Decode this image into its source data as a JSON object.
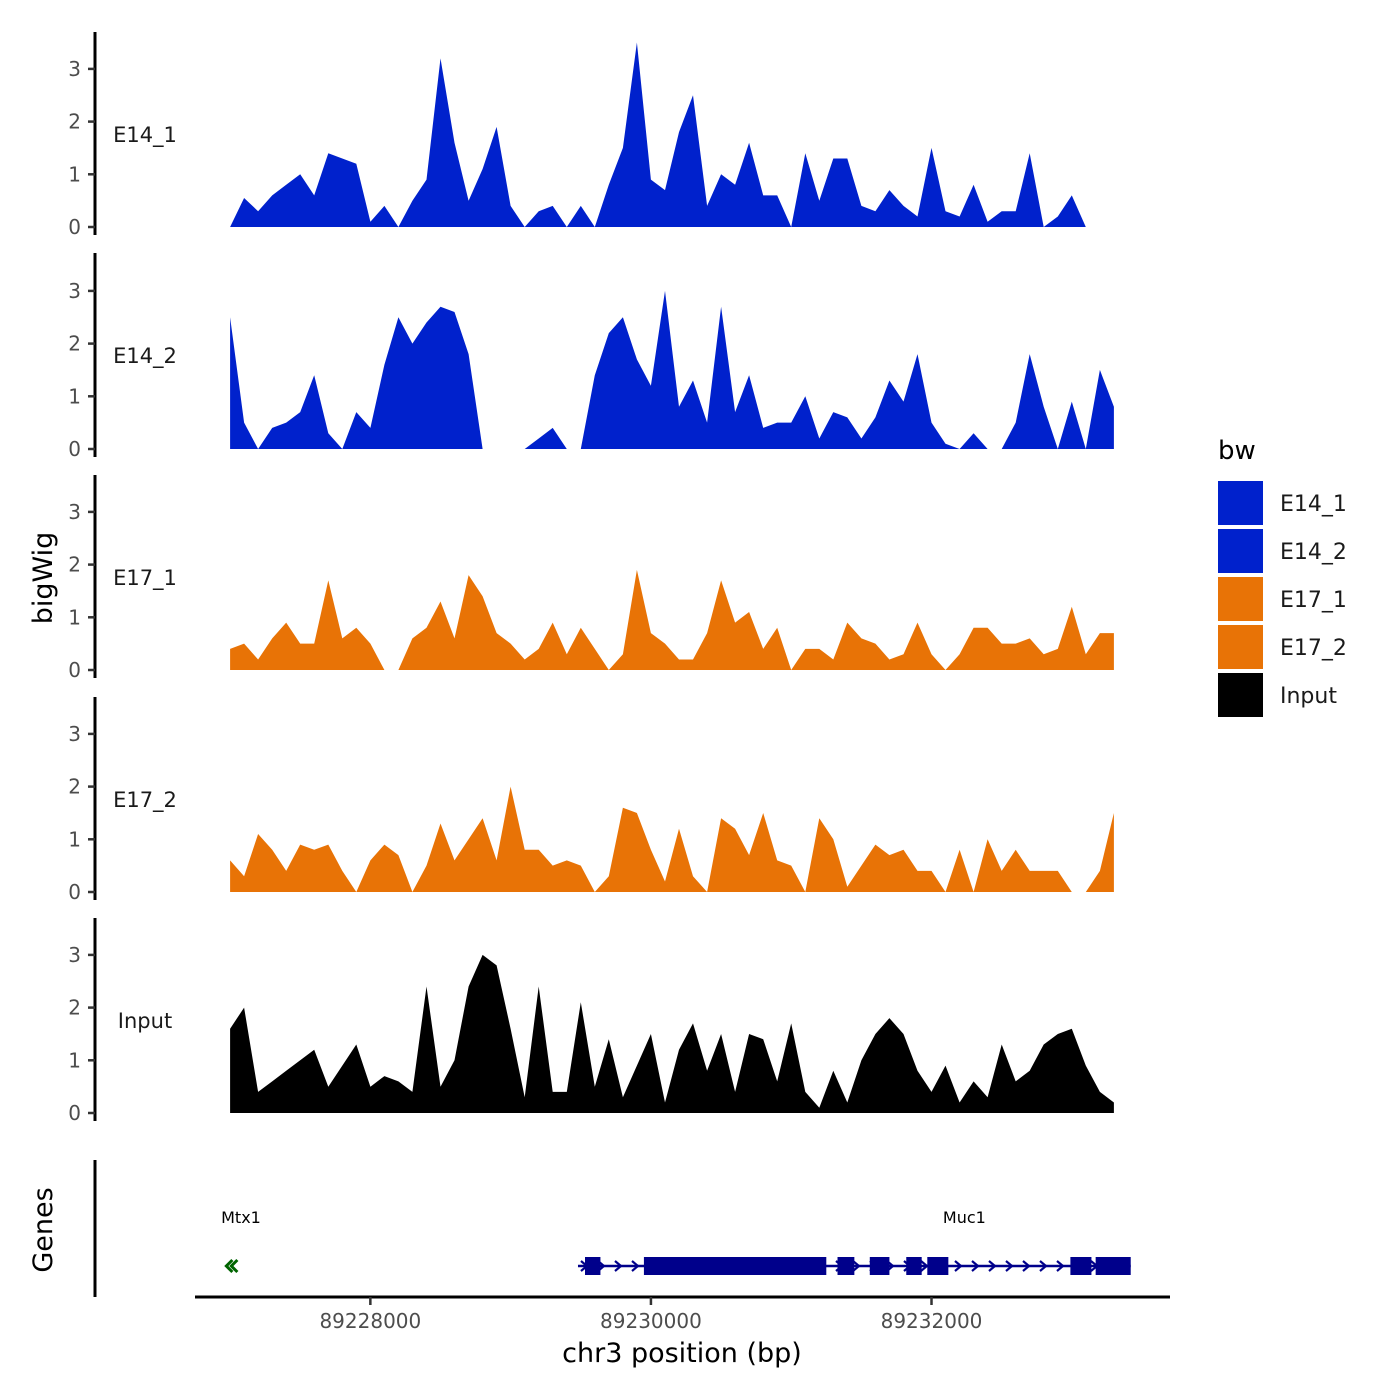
{
  "chart_data": {
    "type": "area",
    "ylabel": "bigWig",
    "xlabel": "chr3 position (bp)",
    "ylim": [
      0,
      3.7
    ],
    "yticks": [
      0,
      1,
      2,
      3
    ],
    "xlim": [
      89226750,
      89233700
    ],
    "xticks": [
      89228000,
      89230000,
      89232000
    ],
    "xtick_labels": [
      "89228000",
      "89230000",
      "89232000"
    ],
    "legend": {
      "title": "bw",
      "position": "right",
      "entries": [
        {
          "label": "E14_1",
          "color": "#0021CC"
        },
        {
          "label": "E14_2",
          "color": "#0021CC"
        },
        {
          "label": "E17_1",
          "color": "#E87306"
        },
        {
          "label": "E17_2",
          "color": "#E87306"
        },
        {
          "label": "Input",
          "color": "#000000"
        }
      ]
    },
    "tracks": [
      {
        "name": "E14_1",
        "color": "#0021CC",
        "x": [
          89227000,
          89227100,
          89227200,
          89227300,
          89227400,
          89227500,
          89227600,
          89227700,
          89227800,
          89227900,
          89228000,
          89228100,
          89228200,
          89228300,
          89228400,
          89228500,
          89228600,
          89228700,
          89228800,
          89228900,
          89229000,
          89229100,
          89229200,
          89229300,
          89229400,
          89229500,
          89229600,
          89229700,
          89229800,
          89229900,
          89230000,
          89230100,
          89230200,
          89230300,
          89230400,
          89230500,
          89230600,
          89230700,
          89230800,
          89230900,
          89231000,
          89231100,
          89231200,
          89231300,
          89231400,
          89231500,
          89231600,
          89231700,
          89231800,
          89231900,
          89232000,
          89232100,
          89232200,
          89232300,
          89232400,
          89232500,
          89232600,
          89232700,
          89232800,
          89232900,
          89233000,
          89233100,
          89233200,
          89233300
        ],
        "values": [
          0.0,
          0.55,
          0.3,
          0.6,
          0.8,
          1.0,
          0.6,
          1.4,
          1.3,
          1.2,
          0.1,
          0.4,
          0.0,
          0.5,
          0.9,
          3.2,
          1.6,
          0.5,
          1.1,
          1.9,
          0.4,
          0.0,
          0.3,
          0.4,
          0.0,
          0.4,
          0.0,
          0.8,
          1.5,
          3.5,
          0.9,
          0.7,
          1.8,
          2.5,
          0.4,
          1.0,
          0.8,
          1.6,
          0.6,
          0.6,
          0.0,
          1.4,
          0.5,
          1.3,
          1.3,
          0.4,
          0.3,
          0.7,
          0.4,
          0.2,
          1.5,
          0.3,
          0.2,
          0.8,
          0.1,
          0.3,
          0.3,
          1.4,
          0.0,
          0.2,
          0.6,
          0.0,
          0.0,
          0.0
        ]
      },
      {
        "name": "E14_2",
        "color": "#0021CC",
        "x": [
          89227000,
          89227100,
          89227200,
          89227300,
          89227400,
          89227500,
          89227600,
          89227700,
          89227800,
          89227900,
          89228000,
          89228100,
          89228200,
          89228300,
          89228400,
          89228500,
          89228600,
          89228700,
          89228800,
          89228900,
          89229000,
          89229100,
          89229200,
          89229300,
          89229400,
          89229500,
          89229600,
          89229700,
          89229800,
          89229900,
          89230000,
          89230100,
          89230200,
          89230300,
          89230400,
          89230500,
          89230600,
          89230700,
          89230800,
          89230900,
          89231000,
          89231100,
          89231200,
          89231300,
          89231400,
          89231500,
          89231600,
          89231700,
          89231800,
          89231900,
          89232000,
          89232100,
          89232200,
          89232300,
          89232400,
          89232500,
          89232600,
          89232700,
          89232800,
          89232900,
          89233000,
          89233100,
          89233200,
          89233300
        ],
        "values": [
          2.5,
          0.5,
          0.0,
          0.4,
          0.5,
          0.7,
          1.4,
          0.3,
          0.0,
          0.7,
          0.4,
          1.6,
          2.5,
          2.0,
          2.4,
          2.7,
          2.6,
          1.8,
          0.0,
          0.0,
          0.0,
          0.0,
          0.2,
          0.4,
          0.0,
          0.0,
          1.4,
          2.2,
          2.5,
          1.7,
          1.2,
          3.0,
          0.8,
          1.3,
          0.5,
          2.7,
          0.7,
          1.4,
          0.4,
          0.5,
          0.5,
          1.0,
          0.2,
          0.7,
          0.6,
          0.2,
          0.6,
          1.3,
          0.9,
          1.8,
          0.5,
          0.1,
          0.0,
          0.3,
          0.0,
          0.0,
          0.5,
          1.8,
          0.8,
          0.0,
          0.9,
          0.0,
          1.5,
          0.8
        ]
      },
      {
        "name": "E17_1",
        "color": "#E87306",
        "x": [
          89227000,
          89227100,
          89227200,
          89227300,
          89227400,
          89227500,
          89227600,
          89227700,
          89227800,
          89227900,
          89228000,
          89228100,
          89228200,
          89228300,
          89228400,
          89228500,
          89228600,
          89228700,
          89228800,
          89228900,
          89229000,
          89229100,
          89229200,
          89229300,
          89229400,
          89229500,
          89229600,
          89229700,
          89229800,
          89229900,
          89230000,
          89230100,
          89230200,
          89230300,
          89230400,
          89230500,
          89230600,
          89230700,
          89230800,
          89230900,
          89231000,
          89231100,
          89231200,
          89231300,
          89231400,
          89231500,
          89231600,
          89231700,
          89231800,
          89231900,
          89232000,
          89232100,
          89232200,
          89232300,
          89232400,
          89232500,
          89232600,
          89232700,
          89232800,
          89232900,
          89233000,
          89233100,
          89233200,
          89233300
        ],
        "values": [
          0.4,
          0.5,
          0.2,
          0.6,
          0.9,
          0.5,
          0.5,
          1.7,
          0.6,
          0.8,
          0.5,
          0.0,
          0.0,
          0.6,
          0.8,
          1.3,
          0.6,
          1.8,
          1.4,
          0.7,
          0.5,
          0.2,
          0.4,
          0.9,
          0.3,
          0.8,
          0.4,
          0.0,
          0.3,
          1.9,
          0.7,
          0.5,
          0.2,
          0.2,
          0.7,
          1.7,
          0.9,
          1.1,
          0.4,
          0.8,
          0.0,
          0.4,
          0.4,
          0.2,
          0.9,
          0.6,
          0.5,
          0.2,
          0.3,
          0.9,
          0.3,
          0.0,
          0.3,
          0.8,
          0.8,
          0.5,
          0.5,
          0.6,
          0.3,
          0.4,
          1.2,
          0.3,
          0.7,
          0.7
        ]
      },
      {
        "name": "E17_2",
        "color": "#E87306",
        "x": [
          89227000,
          89227100,
          89227200,
          89227300,
          89227400,
          89227500,
          89227600,
          89227700,
          89227800,
          89227900,
          89228000,
          89228100,
          89228200,
          89228300,
          89228400,
          89228500,
          89228600,
          89228700,
          89228800,
          89228900,
          89229000,
          89229100,
          89229200,
          89229300,
          89229400,
          89229500,
          89229600,
          89229700,
          89229800,
          89229900,
          89230000,
          89230100,
          89230200,
          89230300,
          89230400,
          89230500,
          89230600,
          89230700,
          89230800,
          89230900,
          89231000,
          89231100,
          89231200,
          89231300,
          89231400,
          89231500,
          89231600,
          89231700,
          89231800,
          89231900,
          89232000,
          89232100,
          89232200,
          89232300,
          89232400,
          89232500,
          89232600,
          89232700,
          89232800,
          89232900,
          89233000,
          89233100,
          89233200,
          89233300
        ],
        "values": [
          0.6,
          0.3,
          1.1,
          0.8,
          0.4,
          0.9,
          0.8,
          0.9,
          0.4,
          0.0,
          0.6,
          0.9,
          0.7,
          0.0,
          0.5,
          1.3,
          0.6,
          1.0,
          1.4,
          0.6,
          2.0,
          0.8,
          0.8,
          0.5,
          0.6,
          0.5,
          0.0,
          0.3,
          1.6,
          1.5,
          0.8,
          0.2,
          1.2,
          0.3,
          0.0,
          1.4,
          1.2,
          0.7,
          1.5,
          0.6,
          0.5,
          0.0,
          1.4,
          1.0,
          0.1,
          0.5,
          0.9,
          0.7,
          0.8,
          0.4,
          0.4,
          0.0,
          0.8,
          0.0,
          1.0,
          0.4,
          0.8,
          0.4,
          0.4,
          0.4,
          0.0,
          0.0,
          0.4,
          1.5
        ]
      },
      {
        "name": "Input",
        "color": "#000000",
        "x": [
          89227000,
          89227100,
          89227200,
          89227300,
          89227400,
          89227500,
          89227600,
          89227700,
          89227800,
          89227900,
          89228000,
          89228100,
          89228200,
          89228300,
          89228400,
          89228500,
          89228600,
          89228700,
          89228800,
          89228900,
          89229000,
          89229100,
          89229200,
          89229300,
          89229400,
          89229500,
          89229600,
          89229700,
          89229800,
          89229900,
          89230000,
          89230100,
          89230200,
          89230300,
          89230400,
          89230500,
          89230600,
          89230700,
          89230800,
          89230900,
          89231000,
          89231100,
          89231200,
          89231300,
          89231400,
          89231500,
          89231600,
          89231700,
          89231800,
          89231900,
          89232000,
          89232100,
          89232200,
          89232300,
          89232400,
          89232500,
          89232600,
          89232700,
          89232800,
          89232900,
          89233000,
          89233100,
          89233200,
          89233300
        ],
        "values": [
          1.6,
          2.0,
          0.4,
          0.6,
          0.8,
          1.0,
          1.2,
          0.5,
          0.9,
          1.3,
          0.5,
          0.7,
          0.6,
          0.4,
          2.4,
          0.5,
          1.0,
          2.4,
          3.0,
          2.8,
          1.6,
          0.3,
          2.4,
          0.4,
          0.4,
          2.1,
          0.5,
          1.4,
          0.3,
          0.9,
          1.5,
          0.2,
          1.2,
          1.7,
          0.8,
          1.5,
          0.4,
          1.5,
          1.4,
          0.6,
          1.7,
          0.4,
          0.1,
          0.8,
          0.2,
          1.0,
          1.5,
          1.8,
          1.5,
          0.8,
          0.4,
          0.9,
          0.2,
          0.6,
          0.3,
          1.3,
          0.6,
          0.8,
          1.3,
          1.5,
          1.6,
          0.9,
          0.4,
          0.2
        ]
      }
    ],
    "genes": {
      "track_label": "Genes",
      "items": [
        {
          "name": "Mtx1",
          "color": "#006400",
          "strand": "-",
          "start": 89226950,
          "end": 89227040,
          "exons": []
        },
        {
          "name": "Muc1",
          "color": "#00008B",
          "strand": "+",
          "start": 89229480,
          "end": 89233420,
          "exons": [
            [
              89229530,
              89229640
            ],
            [
              89229950,
              89231250
            ],
            [
              89231330,
              89231450
            ],
            [
              89231560,
              89231700
            ],
            [
              89231820,
              89231930
            ],
            [
              89231970,
              89232120
            ],
            [
              89232990,
              89233140
            ],
            [
              89233170,
              89233420
            ]
          ]
        }
      ]
    }
  }
}
